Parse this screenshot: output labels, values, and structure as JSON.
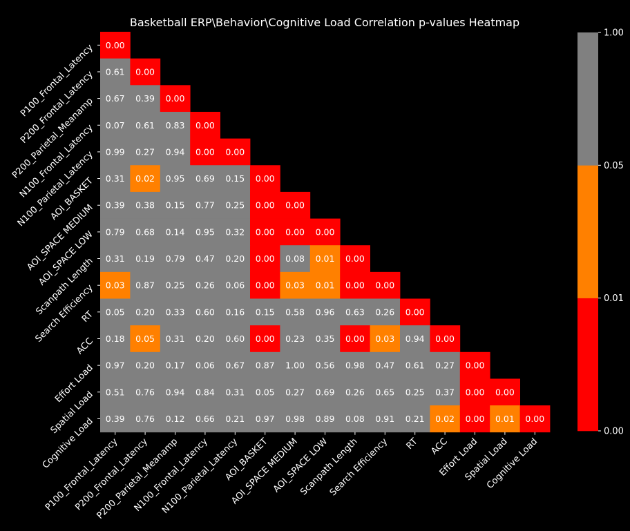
{
  "chart_data": {
    "type": "heatmap",
    "title": "Basketball ERP\\Behavior\\Cognitive Load Correlation p-values Heatmap",
    "variables": [
      "P100_Frontal_Latency",
      "P200_Frontal_Latency",
      "P200_Parietal_Meanamp",
      "N100_Frontal_Latency",
      "N100_Parietal_Latency",
      "AOI_BASKET",
      "AOI_SPACE MEDIUM",
      "AOI_SPACE LOW",
      "Scanpath Length",
      "Search Efficiency",
      "RT",
      "ACC",
      "Effort Load",
      "Spatial Load",
      "Cognitive Load"
    ],
    "mask": "upper triangle",
    "values": [
      [
        "0.00"
      ],
      [
        "0.61",
        "0.00"
      ],
      [
        "0.67",
        "0.39",
        "0.00"
      ],
      [
        "0.07",
        "0.61",
        "0.83",
        "0.00"
      ],
      [
        "0.99",
        "0.27",
        "0.94",
        "0.00",
        "0.00"
      ],
      [
        "0.31",
        "0.02",
        "0.95",
        "0.69",
        "0.15",
        "0.00"
      ],
      [
        "0.39",
        "0.38",
        "0.15",
        "0.77",
        "0.25",
        "0.00",
        "0.00"
      ],
      [
        "0.79",
        "0.68",
        "0.14",
        "0.95",
        "0.32",
        "0.00",
        "0.00",
        "0.00"
      ],
      [
        "0.31",
        "0.19",
        "0.79",
        "0.47",
        "0.20",
        "0.00",
        "0.08",
        "0.01",
        "0.00"
      ],
      [
        "0.03",
        "0.87",
        "0.25",
        "0.26",
        "0.06",
        "0.00",
        "0.03",
        "0.01",
        "0.00",
        "0.00"
      ],
      [
        "0.05",
        "0.20",
        "0.33",
        "0.60",
        "0.16",
        "0.15",
        "0.58",
        "0.96",
        "0.63",
        "0.26",
        "0.00"
      ],
      [
        "0.18",
        "0.05",
        "0.31",
        "0.20",
        "0.60",
        "0.00",
        "0.23",
        "0.35",
        "0.00",
        "0.03",
        "0.94",
        "0.00"
      ],
      [
        "0.97",
        "0.20",
        "0.17",
        "0.06",
        "0.67",
        "0.87",
        "1.00",
        "0.56",
        "0.98",
        "0.47",
        "0.61",
        "0.27",
        "0.00"
      ],
      [
        "0.51",
        "0.76",
        "0.94",
        "0.84",
        "0.31",
        "0.05",
        "0.27",
        "0.69",
        "0.26",
        "0.65",
        "0.25",
        "0.37",
        "0.00",
        "0.00"
      ],
      [
        "0.39",
        "0.76",
        "0.12",
        "0.66",
        "0.21",
        "0.97",
        "0.98",
        "0.89",
        "0.08",
        "0.91",
        "0.21",
        "0.02",
        "0.00",
        "0.01",
        "0.00"
      ]
    ],
    "cell_colors": [
      [
        "r"
      ],
      [
        "g",
        "r"
      ],
      [
        "g",
        "g",
        "r"
      ],
      [
        "g",
        "g",
        "g",
        "r"
      ],
      [
        "g",
        "g",
        "g",
        "r",
        "r"
      ],
      [
        "g",
        "o",
        "g",
        "g",
        "g",
        "r"
      ],
      [
        "g",
        "g",
        "g",
        "g",
        "g",
        "r",
        "r"
      ],
      [
        "g",
        "g",
        "g",
        "g",
        "g",
        "r",
        "r",
        "r"
      ],
      [
        "g",
        "g",
        "g",
        "g",
        "g",
        "r",
        "g",
        "o",
        "r"
      ],
      [
        "o",
        "g",
        "g",
        "g",
        "g",
        "r",
        "o",
        "o",
        "r",
        "r"
      ],
      [
        "g",
        "g",
        "g",
        "g",
        "g",
        "g",
        "g",
        "g",
        "g",
        "g",
        "r"
      ],
      [
        "g",
        "o",
        "g",
        "g",
        "g",
        "r",
        "g",
        "g",
        "r",
        "o",
        "g",
        "r"
      ],
      [
        "g",
        "g",
        "g",
        "g",
        "g",
        "g",
        "g",
        "g",
        "g",
        "g",
        "g",
        "g",
        "r"
      ],
      [
        "g",
        "g",
        "g",
        "g",
        "g",
        "g",
        "g",
        "g",
        "g",
        "g",
        "g",
        "g",
        "r",
        "r"
      ],
      [
        "g",
        "g",
        "g",
        "g",
        "g",
        "g",
        "g",
        "g",
        "g",
        "g",
        "g",
        "o",
        "r",
        "o",
        "r"
      ]
    ],
    "colormap": {
      "boundaries": [
        0.0,
        0.01,
        0.05,
        1.0
      ],
      "boundary_labels": [
        "0.00",
        "0.01",
        "0.05",
        "1.00"
      ],
      "colors": {
        "r": "#ff0000",
        "o": "#ff8000",
        "g": "#808080"
      }
    },
    "background": "#000000",
    "text_color": "#ffffff"
  }
}
